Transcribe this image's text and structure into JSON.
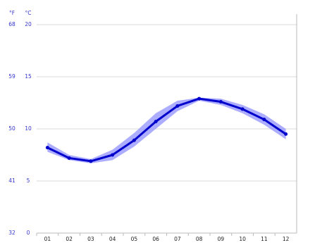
{
  "chart_data": {
    "type": "line",
    "y_unit": "°C",
    "y2_unit": "°F",
    "categories": [
      "01",
      "02",
      "03",
      "04",
      "05",
      "06",
      "07",
      "08",
      "09",
      "10",
      "11",
      "12"
    ],
    "values": [
      8.2,
      7.2,
      6.9,
      7.5,
      8.9,
      10.7,
      12.2,
      12.9,
      12.6,
      11.9,
      10.9,
      9.5
    ],
    "band": {
      "low": [
        7.8,
        7.0,
        6.7,
        7.0,
        8.3,
        10.0,
        11.7,
        12.7,
        12.3,
        11.5,
        10.4,
        9.0
      ],
      "high": [
        8.7,
        7.5,
        7.1,
        8.0,
        9.6,
        11.5,
        12.7,
        13.0,
        12.9,
        12.3,
        11.4,
        10.0
      ]
    },
    "color": "#0000cc",
    "band_color": "#9999ff",
    "ylim": [
      0,
      20
    ],
    "yticks": [
      0,
      5,
      10,
      15,
      20
    ],
    "y2lim": [
      32,
      68
    ],
    "y2ticks": [
      32,
      41,
      50,
      59,
      68
    ],
    "grid": true
  }
}
